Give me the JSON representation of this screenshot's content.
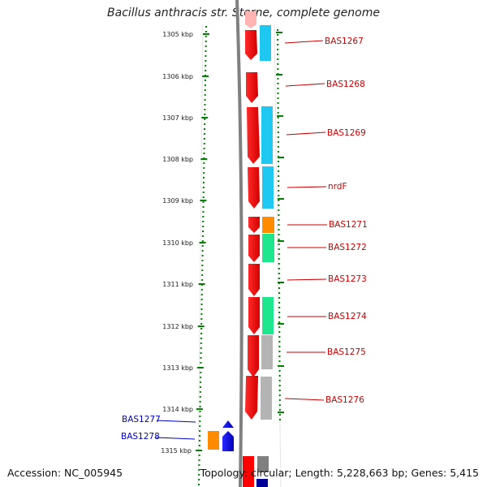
{
  "title": "Bacillus anthracis str. Sterne, complete genome",
  "footer": {
    "accession": "Accession: NC_005945",
    "summary": "Topology: circular; Length: 5,228,663 bp; Genes: 5,415"
  },
  "ruler": {
    "ticks": [
      "1305 kbp",
      "1306 kbp",
      "1307 kbp",
      "1308 kbp",
      "1309 kbp",
      "1310 kbp",
      "1311 kbp",
      "1312 kbp",
      "1313 kbp",
      "1314 kbp",
      "1315 kbp"
    ]
  },
  "genes_forward": [
    {
      "label": "BAS1267"
    },
    {
      "label": "BAS1268"
    },
    {
      "label": "BAS1269"
    },
    {
      "label": "nrdF"
    },
    {
      "label": "BAS1271"
    },
    {
      "label": "BAS1272"
    },
    {
      "label": "BAS1273"
    },
    {
      "label": "BAS1274"
    },
    {
      "label": "BAS1275"
    },
    {
      "label": "BAS1276"
    }
  ],
  "genes_reverse": [
    {
      "label": "BAS1277"
    },
    {
      "label": "BAS1278"
    }
  ],
  "colors": {
    "cds": "#ff0000",
    "cog_blue": "#1ec8f0",
    "cog_orange": "#ff8c00",
    "cog_green": "#1ee68c",
    "cog_gray": "#b4b4b4",
    "reverse_cds": "#0000ff",
    "backbone": "#808080",
    "ruler_ticks": "#008000",
    "label_forward": "#cc0000",
    "label_reverse": "#0000cc"
  }
}
